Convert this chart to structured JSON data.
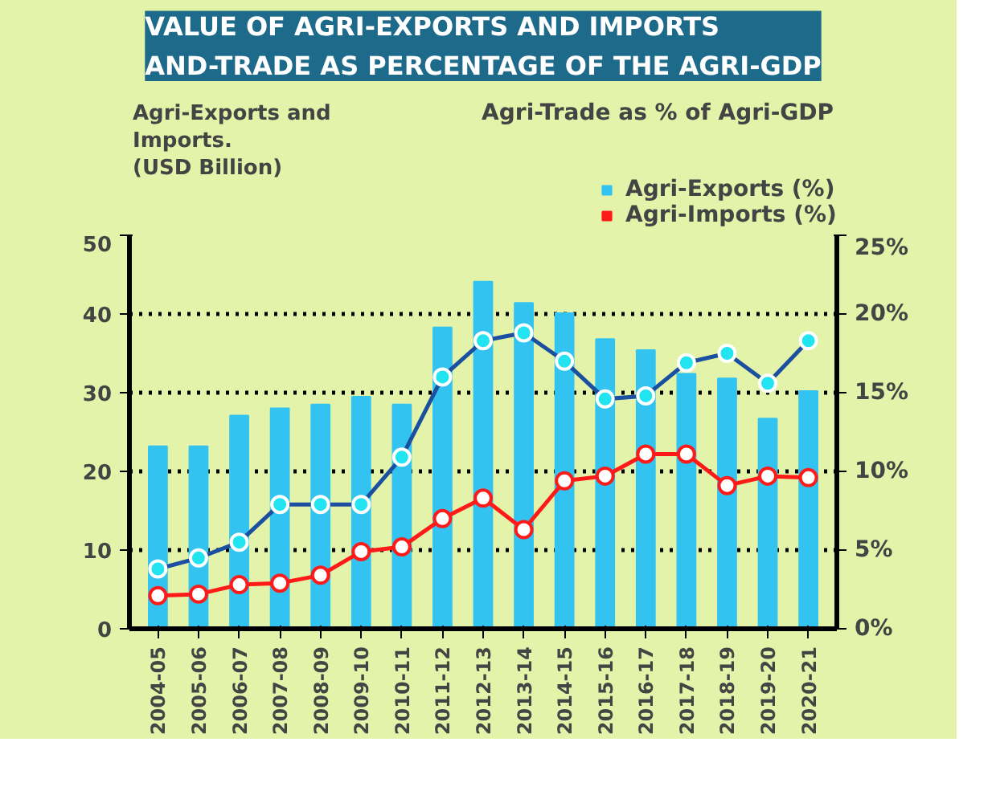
{
  "chart_data": {
    "type": "bar",
    "title": "VALUE OF AGRI-EXPORTS AND IMPORTS\nAND-TRADE AS PERCENTAGE OF THE AGRI-GDP",
    "ylabel": "Agri-Exports and\nImports.\n(USD Billion)",
    "y2label": "Agri-Trade as % of Agri-GDP",
    "categories": [
      "2004-05",
      "2005-06",
      "2006-07",
      "2007-08",
      "2008-09",
      "2009-10",
      "2010-11",
      "2011-12",
      "2012-13",
      "2013-14",
      "2014-15",
      "2015-16",
      "2016-17",
      "2017-18",
      "2018-19",
      "2019-20",
      "2020-21"
    ],
    "series": [
      {
        "name": "Agri-Exports (%)",
        "color": "#33c3f0",
        "values": [
          23.2,
          23.2,
          27.1,
          28.0,
          28.5,
          29.5,
          28.5,
          38.3,
          44.1,
          41.4,
          40.1,
          36.8,
          35.4,
          32.4,
          31.8,
          26.7,
          30.2
        ]
      },
      {
        "type": "line",
        "axis": "y2",
        "color": "#1b4fa0",
        "marker": "circle",
        "values": [
          3.8,
          4.5,
          5.5,
          7.9,
          7.9,
          7.9,
          10.9,
          16.0,
          18.3,
          18.8,
          17.0,
          14.6,
          14.8,
          16.9,
          17.5,
          15.6,
          18.3
        ]
      },
      {
        "name": "Agri-Imports (%)",
        "type": "line",
        "axis": "y2",
        "color": "#ff1a1a",
        "marker": "circle",
        "values": [
          2.1,
          2.2,
          2.8,
          2.9,
          3.4,
          4.9,
          5.2,
          7.0,
          8.3,
          6.3,
          9.4,
          9.7,
          11.1,
          11.1,
          9.1,
          9.7,
          9.6
        ]
      }
    ],
    "ylim": [
      0,
      50
    ],
    "yticks": [
      0,
      10,
      20,
      30,
      40,
      50
    ],
    "y2lim": [
      0,
      25
    ],
    "y2ticks": [
      {
        "value": 0,
        "label": "0%"
      },
      {
        "value": 5,
        "label": "5%"
      },
      {
        "value": 10,
        "label": "10%"
      },
      {
        "value": 15,
        "label": "15%"
      },
      {
        "value": 20,
        "label": "20%"
      },
      {
        "value": 25,
        "label": "25%"
      }
    ],
    "grid": "y",
    "legend": "top right"
  }
}
